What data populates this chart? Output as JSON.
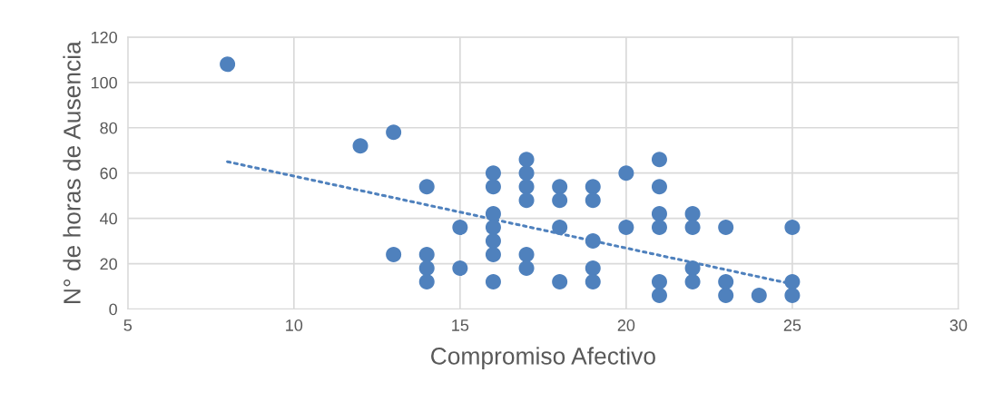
{
  "chart_data": {
    "type": "scatter",
    "xlabel": "Compromiso Afectivo",
    "ylabel": "N° de horas de Ausencia",
    "xlim": [
      5,
      30
    ],
    "xticks": [
      5,
      10,
      15,
      20,
      25,
      30
    ],
    "ylim": [
      0,
      120
    ],
    "yticks": [
      0,
      20,
      40,
      60,
      80,
      100,
      120
    ],
    "grid": true,
    "series": [
      {
        "marker": "circle",
        "color": "#4f81bd",
        "x": [
          8,
          12,
          13,
          13,
          14,
          14,
          14,
          14,
          15,
          15,
          16,
          16,
          16,
          16,
          16,
          16,
          16,
          17,
          17,
          17,
          17,
          17,
          17,
          18,
          18,
          18,
          18,
          19,
          19,
          19,
          19,
          19,
          20,
          20,
          21,
          21,
          21,
          21,
          21,
          21,
          22,
          22,
          22,
          22,
          23,
          23,
          23,
          24,
          25,
          25,
          25
        ],
        "values": [
          108,
          72,
          78,
          24,
          54,
          24,
          18,
          12,
          36,
          18,
          60,
          54,
          42,
          36,
          30,
          24,
          12,
          66,
          60,
          54,
          48,
          24,
          18,
          54,
          48,
          36,
          12,
          54,
          48,
          30,
          18,
          12,
          60,
          36,
          66,
          54,
          42,
          36,
          12,
          6,
          42,
          36,
          18,
          12,
          36,
          12,
          6,
          6,
          36,
          12,
          6
        ]
      },
      {
        "type": "line",
        "marker": "none",
        "color": "#4f81bd",
        "line_style": "dotted",
        "x": [
          8,
          25
        ],
        "values": [
          65,
          11
        ]
      }
    ]
  }
}
